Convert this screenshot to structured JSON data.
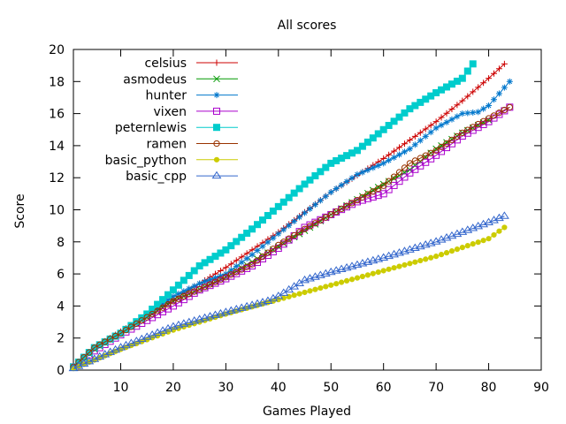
{
  "chart_data": {
    "type": "line",
    "title": "All scores",
    "xlabel": "Games Played",
    "ylabel": "Score",
    "xlim": [
      1,
      90
    ],
    "ylim": [
      0,
      20
    ],
    "xticks": [
      10,
      20,
      30,
      40,
      50,
      60,
      70,
      80,
      90
    ],
    "yticks": [
      0,
      2,
      4,
      6,
      8,
      10,
      12,
      14,
      16,
      18,
      20
    ],
    "grid": false,
    "legend_position": "top-left",
    "series": [
      {
        "name": "celsius",
        "color": "#cc0000",
        "marker": "plus",
        "points": [
          [
            1,
            0.2
          ],
          [
            5,
            1.4
          ],
          [
            10,
            2.4
          ],
          [
            20,
            4.4
          ],
          [
            30,
            6.4
          ],
          [
            40,
            8.6
          ],
          [
            50,
            11.1
          ],
          [
            60,
            13.2
          ],
          [
            70,
            15.5
          ],
          [
            75,
            16.8
          ],
          [
            80,
            18.2
          ],
          [
            83,
            19.1
          ]
        ]
      },
      {
        "name": "asmodeus",
        "color": "#009900",
        "marker": "x",
        "points": [
          [
            1,
            0.2
          ],
          [
            5,
            1.3
          ],
          [
            10,
            2.3
          ],
          [
            20,
            4.3
          ],
          [
            30,
            5.8
          ],
          [
            40,
            7.7
          ],
          [
            50,
            9.7
          ],
          [
            60,
            11.6
          ],
          [
            65,
            12.5
          ],
          [
            70,
            13.8
          ],
          [
            75,
            14.8
          ],
          [
            80,
            15.6
          ]
        ]
      },
      {
        "name": "hunter",
        "color": "#0077cc",
        "marker": "star",
        "points": [
          [
            1,
            0.2
          ],
          [
            5,
            1.4
          ],
          [
            10,
            2.3
          ],
          [
            20,
            4.6
          ],
          [
            25,
            5.4
          ],
          [
            30,
            6.0
          ],
          [
            35,
            7.2
          ],
          [
            40,
            8.5
          ],
          [
            45,
            9.8
          ],
          [
            50,
            11.1
          ],
          [
            55,
            12.2
          ],
          [
            60,
            12.9
          ],
          [
            65,
            13.8
          ],
          [
            70,
            15.1
          ],
          [
            75,
            16.0
          ],
          [
            78,
            16.1
          ],
          [
            80,
            16.5
          ],
          [
            84,
            18.0
          ]
        ]
      },
      {
        "name": "vixen",
        "color": "#aa00cc",
        "marker": "square-open",
        "points": [
          [
            1,
            0.2
          ],
          [
            5,
            1.2
          ],
          [
            10,
            2.2
          ],
          [
            20,
            4.0
          ],
          [
            25,
            5.0
          ],
          [
            30,
            5.7
          ],
          [
            35,
            6.5
          ],
          [
            40,
            7.6
          ],
          [
            45,
            8.9
          ],
          [
            50,
            9.7
          ],
          [
            55,
            10.5
          ],
          [
            60,
            11.0
          ],
          [
            65,
            12.3
          ],
          [
            70,
            13.4
          ],
          [
            75,
            14.6
          ],
          [
            80,
            15.5
          ],
          [
            84,
            16.4
          ]
        ]
      },
      {
        "name": "peternlewis",
        "color": "#00cccc",
        "marker": "square-filled",
        "points": [
          [
            1,
            0.2
          ],
          [
            5,
            1.4
          ],
          [
            10,
            2.3
          ],
          [
            15,
            3.5
          ],
          [
            20,
            5.0
          ],
          [
            25,
            6.5
          ],
          [
            30,
            7.5
          ],
          [
            35,
            8.8
          ],
          [
            40,
            10.2
          ],
          [
            45,
            11.6
          ],
          [
            50,
            12.9
          ],
          [
            55,
            13.7
          ],
          [
            60,
            15.0
          ],
          [
            65,
            16.3
          ],
          [
            70,
            17.3
          ],
          [
            75,
            18.2
          ],
          [
            77,
            19.1
          ]
        ]
      },
      {
        "name": "ramen",
        "color": "#993300",
        "marker": "circle-open",
        "points": [
          [
            1,
            0.2
          ],
          [
            5,
            1.4
          ],
          [
            10,
            2.3
          ],
          [
            20,
            4.3
          ],
          [
            30,
            5.8
          ],
          [
            35,
            6.6
          ],
          [
            40,
            7.8
          ],
          [
            45,
            8.8
          ],
          [
            50,
            9.7
          ],
          [
            55,
            10.6
          ],
          [
            60,
            11.5
          ],
          [
            65,
            12.9
          ],
          [
            70,
            13.7
          ],
          [
            75,
            14.8
          ],
          [
            80,
            15.7
          ],
          [
            84,
            16.4
          ]
        ]
      },
      {
        "name": "basic_python",
        "color": "#cccc00",
        "marker": "dot",
        "points": [
          [
            1,
            0.1
          ],
          [
            10,
            1.3
          ],
          [
            20,
            2.5
          ],
          [
            30,
            3.5
          ],
          [
            40,
            4.4
          ],
          [
            50,
            5.3
          ],
          [
            60,
            6.2
          ],
          [
            70,
            7.1
          ],
          [
            80,
            8.2
          ],
          [
            83,
            8.9
          ]
        ]
      },
      {
        "name": "basic_cpp",
        "color": "#3366cc",
        "marker": "triangle-open",
        "points": [
          [
            1,
            0.1
          ],
          [
            10,
            1.4
          ],
          [
            20,
            2.7
          ],
          [
            30,
            3.6
          ],
          [
            38,
            4.3
          ],
          [
            40,
            4.6
          ],
          [
            45,
            5.6
          ],
          [
            50,
            6.1
          ],
          [
            60,
            7.0
          ],
          [
            70,
            8.0
          ],
          [
            80,
            9.2
          ],
          [
            83,
            9.6
          ]
        ]
      }
    ]
  }
}
